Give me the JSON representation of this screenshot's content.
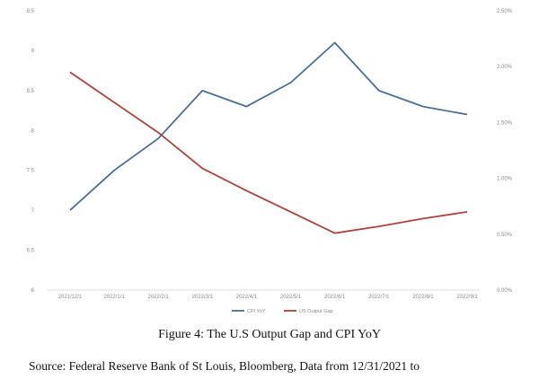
{
  "chart_data": {
    "type": "line",
    "title": "",
    "xlabel": "",
    "ylabel": "",
    "categories": [
      "2021/12/1",
      "2022/1/1",
      "2022/2/1",
      "2022/3/1",
      "2022/4/1",
      "2022/5/1",
      "2022/6/1",
      "2022/7/1",
      "2022/8/1",
      "2022/9/1"
    ],
    "left_axis": {
      "ylim": [
        6,
        9.5
      ],
      "ticks": [
        6,
        6.5,
        7,
        7.5,
        8,
        8.5,
        9,
        9.5
      ],
      "tick_labels": [
        "6",
        "6.5",
        "7",
        "7.5",
        "8",
        "8.5",
        "9",
        "9.5"
      ]
    },
    "right_axis": {
      "ylim": [
        0,
        0.025
      ],
      "ticks": [
        0,
        0.005,
        0.01,
        0.015,
        0.02,
        0.025
      ],
      "tick_labels": [
        "0.00%",
        "0.50%",
        "1.00%",
        "1.50%",
        "2.00%",
        "2.50%"
      ]
    },
    "series": [
      {
        "name": "CPI YoY",
        "axis": "left",
        "color": "#4a6f98",
        "values": [
          7.0,
          7.5,
          7.9,
          8.5,
          8.3,
          8.6,
          9.1,
          8.5,
          8.3,
          8.2
        ]
      },
      {
        "name": "US Output Gap",
        "axis": "right",
        "color": "#b0413c",
        "values": [
          0.0195,
          0.0168,
          0.0141,
          0.0109,
          0.0089,
          0.007,
          0.0051,
          0.0057,
          0.0064,
          0.007
        ]
      }
    ],
    "grid": false,
    "legend": "bottom-center"
  },
  "caption": "Figure  4: The U.S Output Gap and CPI YoY",
  "source": "Source:  Federal Reserve Bank of St Louis,  Bloomberg,  Data from 12/31/2021  to"
}
